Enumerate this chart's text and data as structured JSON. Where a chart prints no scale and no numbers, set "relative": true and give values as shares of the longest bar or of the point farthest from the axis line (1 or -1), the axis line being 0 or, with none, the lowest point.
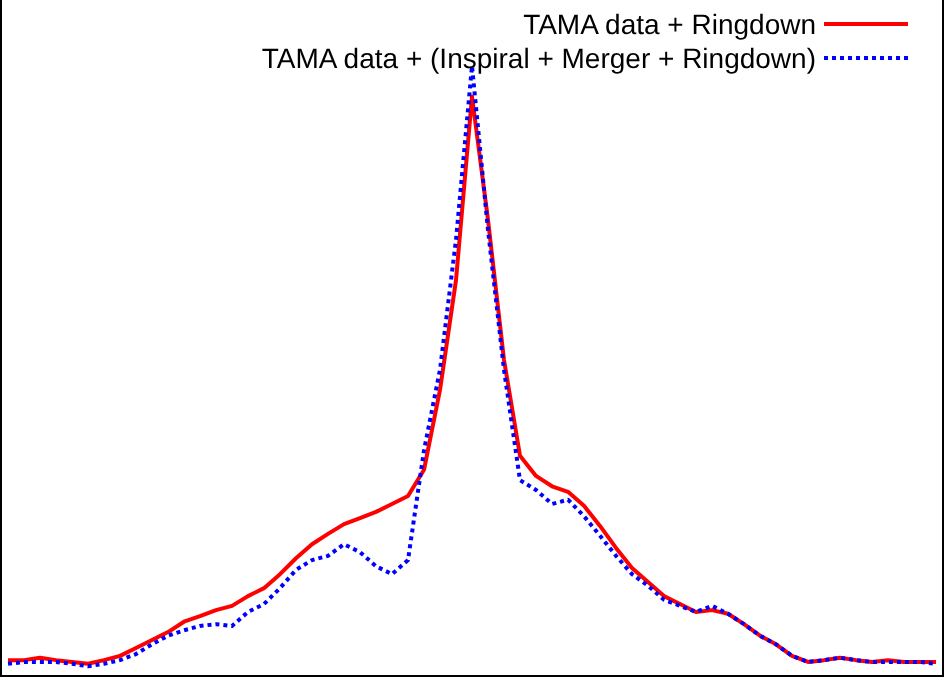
{
  "chart_data": {
    "type": "line",
    "relative": true,
    "legend": "top right",
    "categories": [
      null,
      null,
      null,
      null,
      null,
      null,
      null,
      null,
      null,
      null,
      null,
      null,
      null,
      null,
      null,
      null,
      null,
      null,
      null,
      null,
      null,
      null,
      null,
      null,
      null,
      null,
      null,
      null,
      null,
      null,
      null,
      null,
      null,
      null,
      null,
      null,
      null,
      null,
      null,
      null,
      null,
      null,
      null,
      null,
      null,
      null,
      null,
      null,
      null,
      null,
      null,
      null,
      null,
      null,
      null,
      null,
      null,
      null,
      null
    ],
    "series": [
      {
        "name": "TAMA data + Ringdown",
        "color": "#ff0000",
        "line_style": "solid",
        "values": [
          0.026,
          0.026,
          0.03,
          0.026,
          0.023,
          0.02,
          0.026,
          0.033,
          0.046,
          0.059,
          0.072,
          0.089,
          0.098,
          0.108,
          0.115,
          0.131,
          0.144,
          0.167,
          0.193,
          0.216,
          0.233,
          0.249,
          0.259,
          0.269,
          0.282,
          0.295,
          0.338,
          0.469,
          0.649,
          0.95,
          0.748,
          0.518,
          0.361,
          0.328,
          0.311,
          0.302,
          0.279,
          0.246,
          0.21,
          0.177,
          0.154,
          0.131,
          0.118,
          0.105,
          0.108,
          0.102,
          0.085,
          0.066,
          0.052,
          0.033,
          0.023,
          0.026,
          0.03,
          0.026,
          0.023,
          0.026,
          0.023,
          0.023,
          0.023
        ]
      },
      {
        "name": "TAMA data + (Inspiral + Merger + Ringdown)",
        "color": "#0000ff",
        "line_style": "dotted",
        "values": [
          0.02,
          0.023,
          0.023,
          0.023,
          0.02,
          0.016,
          0.02,
          0.026,
          0.036,
          0.052,
          0.066,
          0.075,
          0.082,
          0.085,
          0.082,
          0.105,
          0.118,
          0.144,
          0.174,
          0.19,
          0.197,
          0.216,
          0.203,
          0.18,
          0.167,
          0.19,
          0.37,
          0.502,
          0.715,
          1,
          0.731,
          0.502,
          0.321,
          0.305,
          0.282,
          0.289,
          0.262,
          0.23,
          0.197,
          0.167,
          0.148,
          0.125,
          0.115,
          0.105,
          0.115,
          0.102,
          0.085,
          0.066,
          0.052,
          0.033,
          0.023,
          0.026,
          0.03,
          0.026,
          0.023,
          0.023,
          0.023,
          0.023,
          0.02
        ]
      }
    ]
  }
}
